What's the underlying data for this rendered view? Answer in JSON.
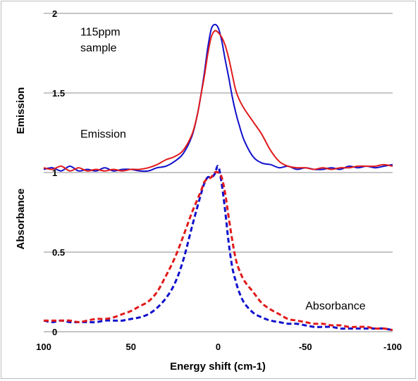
{
  "chart_data": {
    "type": "line",
    "title": "",
    "xlabel": "Energy shift (cm-1)",
    "ylabel_top": "Emission",
    "ylabel_bottom": "Absorbance",
    "xlim": [
      100,
      -100
    ],
    "ylim": [
      0,
      2
    ],
    "x_reversed": true,
    "grid": "horizontal",
    "x_ticks": [
      100,
      50,
      0,
      -50,
      -100
    ],
    "y_ticks": [
      0,
      0.5,
      1,
      1.5,
      2
    ],
    "x_tick_labels": [
      "100",
      "50",
      "0",
      "-50",
      "-100"
    ],
    "y_tick_labels": [
      "0",
      "0.5",
      "1",
      "1.5",
      "2"
    ],
    "annotations": [
      {
        "text": "115ppm",
        "x": 79,
        "y": 1.86
      },
      {
        "text": "sample",
        "x": 79,
        "y": 1.76
      },
      {
        "text": "Emission",
        "x": 79,
        "y": 1.22
      },
      {
        "text": "Absorbance",
        "x": -50,
        "y": 0.14
      }
    ],
    "series": [
      {
        "color": "#1010cc",
        "dash": "solid",
        "x": [
          100,
          95,
          90,
          85,
          80,
          75,
          70,
          65,
          60,
          55,
          50,
          45,
          40,
          35,
          30,
          25,
          20,
          15,
          12,
          10,
          8,
          6,
          4,
          2,
          0,
          -2,
          -4,
          -6,
          -8,
          -10,
          -12,
          -15,
          -20,
          -25,
          -30,
          -35,
          -40,
          -45,
          -50,
          -55,
          -60,
          -65,
          -70,
          -75,
          -80,
          -85,
          -90,
          -95,
          -100
        ],
        "values": [
          1.02,
          1.03,
          1.01,
          1.04,
          1.01,
          1.02,
          1.01,
          1.03,
          1.01,
          1.02,
          1.02,
          1.01,
          1.01,
          1.03,
          1.04,
          1.07,
          1.12,
          1.23,
          1.36,
          1.48,
          1.62,
          1.78,
          1.9,
          1.93,
          1.91,
          1.83,
          1.71,
          1.6,
          1.48,
          1.38,
          1.3,
          1.2,
          1.1,
          1.06,
          1.05,
          1.03,
          1.04,
          1.02,
          1.03,
          1.02,
          1.02,
          1.03,
          1.02,
          1.04,
          1.03,
          1.04,
          1.03,
          1.04,
          1.05
        ]
      },
      {
        "color": "#e11a1a",
        "dash": "solid",
        "x": [
          100,
          95,
          90,
          85,
          80,
          75,
          70,
          65,
          60,
          55,
          50,
          45,
          40,
          35,
          30,
          25,
          20,
          15,
          12,
          10,
          8,
          6,
          4,
          2,
          0,
          -2,
          -4,
          -6,
          -8,
          -10,
          -12,
          -15,
          -20,
          -25,
          -30,
          -35,
          -40,
          -45,
          -50,
          -55,
          -60,
          -65,
          -70,
          -75,
          -80,
          -85,
          -90,
          -95,
          -100
        ],
        "values": [
          1.03,
          1.02,
          1.04,
          1.01,
          1.03,
          1.01,
          1.02,
          1.01,
          1.02,
          1.01,
          1.02,
          1.02,
          1.03,
          1.05,
          1.08,
          1.1,
          1.14,
          1.24,
          1.36,
          1.48,
          1.6,
          1.74,
          1.85,
          1.89,
          1.88,
          1.85,
          1.8,
          1.72,
          1.62,
          1.52,
          1.46,
          1.4,
          1.32,
          1.24,
          1.14,
          1.07,
          1.04,
          1.03,
          1.03,
          1.02,
          1.03,
          1.02,
          1.03,
          1.03,
          1.04,
          1.04,
          1.04,
          1.05,
          1.04
        ]
      },
      {
        "color": "#1010cc",
        "dash": "dashed",
        "x": [
          100,
          95,
          90,
          85,
          80,
          75,
          70,
          65,
          60,
          55,
          50,
          45,
          40,
          35,
          30,
          25,
          20,
          15,
          10,
          8,
          6,
          4,
          2,
          0,
          -2,
          -4,
          -6,
          -8,
          -10,
          -12,
          -15,
          -20,
          -25,
          -30,
          -35,
          -40,
          -45,
          -50,
          -55,
          -60,
          -65,
          -70,
          -75,
          -80,
          -85,
          -90,
          -95,
          -100
        ],
        "values": [
          0.07,
          0.06,
          0.07,
          0.06,
          0.06,
          0.06,
          0.06,
          0.07,
          0.07,
          0.07,
          0.08,
          0.09,
          0.11,
          0.15,
          0.21,
          0.3,
          0.45,
          0.66,
          0.86,
          0.93,
          0.97,
          0.97,
          0.99,
          1.04,
          0.93,
          0.76,
          0.56,
          0.41,
          0.32,
          0.25,
          0.18,
          0.12,
          0.09,
          0.07,
          0.06,
          0.05,
          0.05,
          0.04,
          0.03,
          0.03,
          0.03,
          0.02,
          0.02,
          0.02,
          0.02,
          0.02,
          0.02,
          0.01
        ]
      },
      {
        "color": "#e11a1a",
        "dash": "dashed",
        "x": [
          100,
          95,
          90,
          85,
          80,
          75,
          70,
          65,
          60,
          55,
          50,
          45,
          40,
          35,
          30,
          25,
          20,
          15,
          10,
          8,
          6,
          4,
          2,
          0,
          -2,
          -4,
          -6,
          -8,
          -10,
          -12,
          -15,
          -20,
          -25,
          -30,
          -35,
          -40,
          -45,
          -50,
          -55,
          -60,
          -65,
          -70,
          -75,
          -80,
          -85,
          -90,
          -95,
          -100
        ],
        "values": [
          0.07,
          0.07,
          0.07,
          0.07,
          0.06,
          0.07,
          0.08,
          0.08,
          0.09,
          0.11,
          0.13,
          0.16,
          0.19,
          0.25,
          0.35,
          0.46,
          0.6,
          0.75,
          0.88,
          0.94,
          0.96,
          0.97,
          1.0,
          1.0,
          0.97,
          0.87,
          0.72,
          0.58,
          0.46,
          0.39,
          0.32,
          0.25,
          0.18,
          0.14,
          0.11,
          0.08,
          0.07,
          0.06,
          0.05,
          0.05,
          0.04,
          0.04,
          0.03,
          0.03,
          0.03,
          0.02,
          0.02,
          0.01
        ]
      }
    ]
  }
}
